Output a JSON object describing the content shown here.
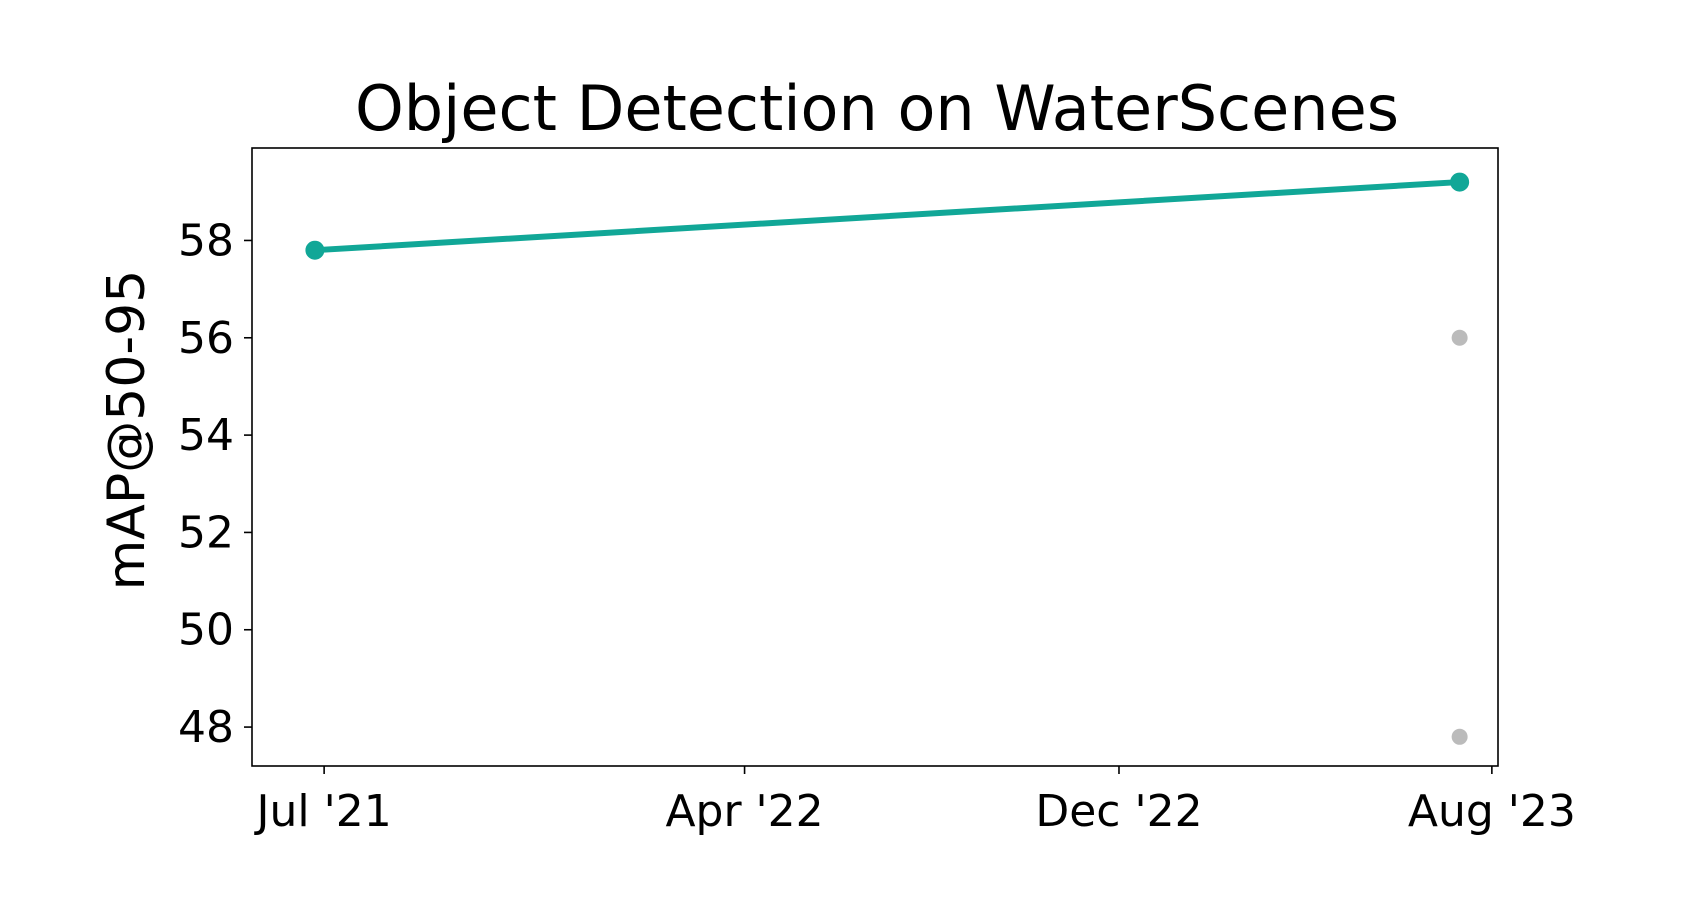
{
  "chart_data": {
    "type": "line",
    "title": "Object Detection on WaterScenes",
    "xlabel": "",
    "ylabel": "mAP@50-95",
    "x_tick_labels": [
      "Jul '21",
      "Apr '22",
      "Dec '22",
      "Aug '23"
    ],
    "x_tick_dates": [
      "2021-07-01",
      "2022-04-01",
      "2022-12-01",
      "2023-08-01"
    ],
    "y_ticks": [
      48,
      50,
      52,
      54,
      56,
      58
    ],
    "xlim": [
      "2021-05-15",
      "2023-08-05"
    ],
    "ylim": [
      47.2,
      59.9
    ],
    "grid": false,
    "series": [
      {
        "color": "#11a797",
        "points": [
          {
            "x": "2021-06-25",
            "y": 57.8
          },
          {
            "x": "2023-07-11",
            "y": 59.2
          }
        ]
      }
    ],
    "other_points": {
      "color": "#bbbbbb",
      "points": [
        {
          "x": "2023-07-11",
          "y": 56.0
        },
        {
          "x": "2023-07-11",
          "y": 47.8
        }
      ]
    }
  }
}
